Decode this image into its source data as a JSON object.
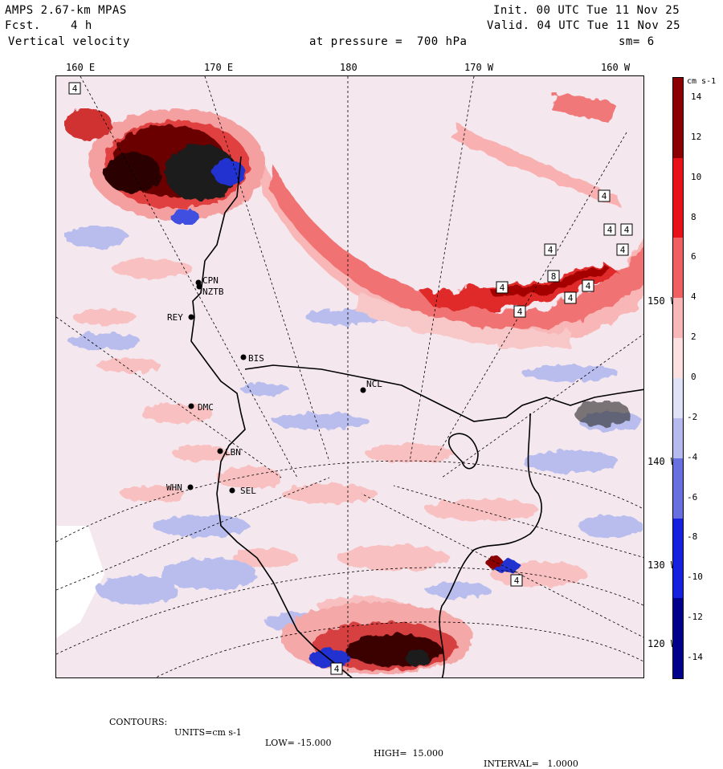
{
  "header": {
    "model": "AMPS 2.67-km MPAS",
    "forecast_label": "Fcst.",
    "forecast_value": "4 h",
    "field": "Vertical velocity",
    "pressure_text": "at pressure =  700 hPa",
    "init_text": "Init. 00 UTC Tue 11 Nov 25",
    "valid_text": "Valid. 04 UTC Tue 11 Nov 25",
    "smoothing": "sm= 6"
  },
  "longitude_labels": [
    "160 E",
    "170 E",
    "180",
    "170 W",
    "160 W"
  ],
  "latitude_labels": [
    "150 W",
    "140 W",
    "130 W",
    "120 W"
  ],
  "colorbar": {
    "units": "cm s-1",
    "labels": [
      "14",
      "12",
      "10",
      "8",
      "6",
      "4",
      "2",
      "0",
      "-2",
      "-4",
      "-6",
      "-8",
      "-10",
      "-12",
      "-14"
    ],
    "colors": {
      "dark_red": "#8b0000",
      "red": "#e8111a",
      "mid_red": "#f06060",
      "light_red": "#f8b8b8",
      "pale_red": "#fde0e0",
      "white": "#ffffff",
      "pale_blue": "#e0e2f8",
      "light_blue": "#b6bbee",
      "mid_blue": "#6870e0",
      "blue": "#1820e0",
      "dark_blue": "#00008b"
    }
  },
  "stations": [
    {
      "code": "CPN"
    },
    {
      "code": "NZTB"
    },
    {
      "code": "REY"
    },
    {
      "code": "BIS"
    },
    {
      "code": "NCL"
    },
    {
      "code": "DMC"
    },
    {
      "code": "LBN"
    },
    {
      "code": "WHN"
    },
    {
      "code": "SEL"
    }
  ],
  "contour_labels": [
    "4",
    "4",
    "4",
    "4",
    "4",
    "4",
    "4",
    "4",
    "4",
    "8",
    "4",
    "4",
    "4"
  ],
  "footer": {
    "contours": "CONTOURS:",
    "units": "UNITS=cm s-1",
    "low": "LOW= -15.000",
    "high": "HIGH=  15.000",
    "interval": "INTERVAL=   1.0000"
  }
}
